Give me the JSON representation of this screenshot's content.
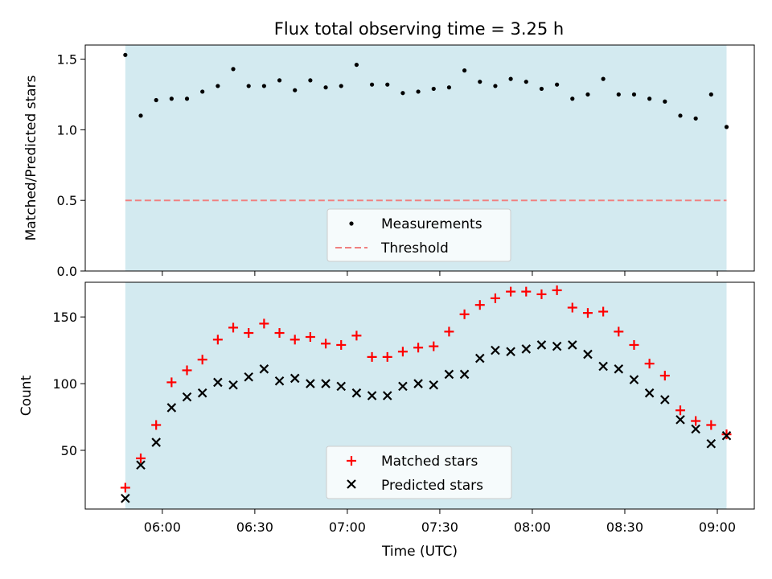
{
  "title": "Flux total observing time = 3.25 h",
  "colors": {
    "observing_band": "#d3eaf0",
    "measurement": "#000000",
    "threshold": "#f08080",
    "matched": "#ff0000",
    "predicted": "#000000"
  },
  "chart_data": [
    {
      "type": "scatter",
      "panel": "top",
      "ylabel": "Matched/Predicted stars",
      "ylim": [
        0,
        1.6
      ],
      "yticks": [
        0.0,
        0.5,
        1.0,
        1.5
      ],
      "ytick_labels": [
        "0.0",
        "0.5",
        "1.0",
        "1.5"
      ],
      "xlim": [
        "05:35",
        "09:12"
      ],
      "shaded_span": [
        "05:48",
        "09:03"
      ],
      "legend_position": "lower center",
      "series": [
        {
          "name": "Measurements",
          "marker": "dot",
          "x": [
            "05:48",
            "05:53",
            "05:58",
            "06:03",
            "06:08",
            "06:13",
            "06:18",
            "06:23",
            "06:28",
            "06:33",
            "06:38",
            "06:43",
            "06:48",
            "06:53",
            "06:58",
            "07:03",
            "07:08",
            "07:13",
            "07:18",
            "07:23",
            "07:28",
            "07:33",
            "07:38",
            "07:43",
            "07:48",
            "07:53",
            "07:58",
            "08:03",
            "08:08",
            "08:13",
            "08:18",
            "08:23",
            "08:28",
            "08:33",
            "08:38",
            "08:43",
            "08:48",
            "08:53",
            "08:58",
            "09:03"
          ],
          "y": [
            1.53,
            1.1,
            1.21,
            1.22,
            1.22,
            1.27,
            1.31,
            1.43,
            1.31,
            1.31,
            1.35,
            1.28,
            1.35,
            1.3,
            1.31,
            1.46,
            1.32,
            1.32,
            1.26,
            1.27,
            1.29,
            1.3,
            1.42,
            1.34,
            1.31,
            1.36,
            1.34,
            1.29,
            1.32,
            1.22,
            1.25,
            1.36,
            1.25,
            1.25,
            1.22,
            1.2,
            1.1,
            1.08,
            1.25,
            1.02
          ]
        },
        {
          "name": "Threshold",
          "style": "dashed",
          "y_constant": 0.5
        }
      ]
    },
    {
      "type": "scatter",
      "panel": "bottom",
      "xlabel": "Time (UTC)",
      "ylabel": "Count",
      "ylim": [
        6,
        176
      ],
      "yticks": [
        50,
        100,
        150
      ],
      "xlim": [
        "05:35",
        "09:12"
      ],
      "xticks": [
        "06:00",
        "06:30",
        "07:00",
        "07:30",
        "08:00",
        "08:30",
        "09:00"
      ],
      "shaded_span": [
        "05:48",
        "09:03"
      ],
      "legend_position": "lower center",
      "x": [
        "05:48",
        "05:53",
        "05:58",
        "06:03",
        "06:08",
        "06:13",
        "06:18",
        "06:23",
        "06:28",
        "06:33",
        "06:38",
        "06:43",
        "06:48",
        "06:53",
        "06:58",
        "07:03",
        "07:08",
        "07:13",
        "07:18",
        "07:23",
        "07:28",
        "07:33",
        "07:38",
        "07:43",
        "07:48",
        "07:53",
        "07:58",
        "08:03",
        "08:08",
        "08:13",
        "08:18",
        "08:23",
        "08:28",
        "08:33",
        "08:38",
        "08:43",
        "08:48",
        "08:53",
        "08:58",
        "09:03"
      ],
      "series": [
        {
          "name": "Matched stars",
          "marker": "plus",
          "values": [
            22,
            44,
            69,
            101,
            110,
            118,
            133,
            142,
            138,
            145,
            138,
            133,
            135,
            130,
            129,
            136,
            120,
            120,
            124,
            127,
            128,
            139,
            152,
            159,
            164,
            169,
            169,
            167,
            170,
            157,
            153,
            154,
            139,
            129,
            115,
            106,
            80,
            72,
            69,
            62
          ]
        },
        {
          "name": "Predicted stars",
          "marker": "x",
          "values": [
            14,
            39,
            56,
            82,
            90,
            93,
            101,
            99,
            105,
            111,
            102,
            104,
            100,
            100,
            98,
            93,
            91,
            91,
            98,
            100,
            99,
            107,
            107,
            119,
            125,
            124,
            126,
            129,
            128,
            129,
            122,
            113,
            111,
            103,
            93,
            88,
            73,
            66,
            55,
            61
          ]
        }
      ]
    }
  ]
}
